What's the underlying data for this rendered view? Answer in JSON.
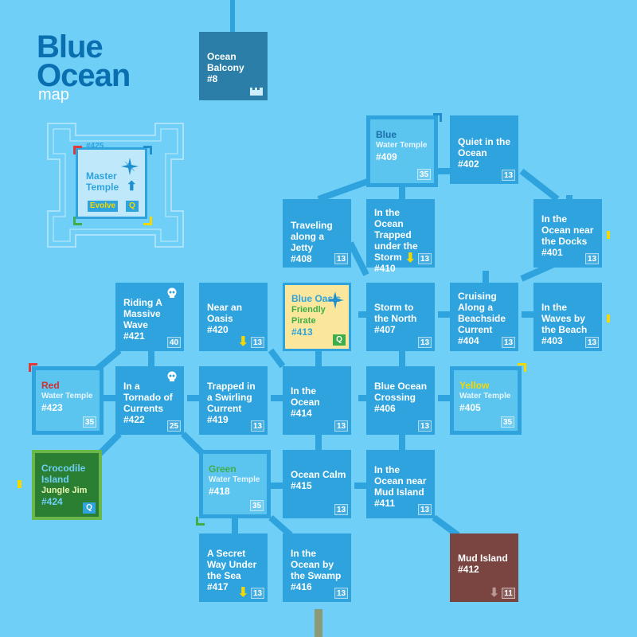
{
  "title": {
    "main_line1": "Blue",
    "main_line2": "Ocean",
    "sub": "map"
  },
  "colors": {
    "ocean": "#6fcff6",
    "room": "#2ea3dd",
    "dark_room": "#2a7ea7",
    "oasis": "#fbe79b",
    "crocodile": "#2a7f33",
    "mud": "#7a4541"
  },
  "rooms": {
    "r8": {
      "name": "Ocean Balcony",
      "id": "#8"
    },
    "r425": {
      "name": "Master Temple",
      "id": "#425",
      "evolve": "Evolve",
      "quest": "Q"
    },
    "r409": {
      "color_word": "Blue",
      "type": "Water Temple",
      "id": "#409",
      "level": "35"
    },
    "r402": {
      "name": "Quiet in the Ocean",
      "id": "#402",
      "level": "13"
    },
    "r408": {
      "name": "Traveling along a Jetty",
      "id": "#408",
      "level": "13"
    },
    "r410": {
      "name": "In the Ocean Trapped under the Storm",
      "id": "#410",
      "level": "13"
    },
    "r401": {
      "name": "In the Ocean near the Docks",
      "id": "#401",
      "level": "13"
    },
    "r421": {
      "name": "Riding A Massive Wave",
      "id": "#421",
      "level": "40"
    },
    "r420": {
      "name": "Near an Oasis",
      "id": "#420",
      "level": "13"
    },
    "r413": {
      "name": "Blue Oasis",
      "subtitle": "Friendly Pirate",
      "id": "#413",
      "quest": "Q"
    },
    "r407": {
      "name": "Storm to the North",
      "id": "#407",
      "level": "13"
    },
    "r404": {
      "name": "Cruising Along a Beachside Current",
      "id": "#404",
      "level": "13"
    },
    "r403": {
      "name": "In the Waves by the Beach",
      "id": "#403",
      "level": "13"
    },
    "r423": {
      "color_word": "Red",
      "type": "Water Temple",
      "id": "#423",
      "level": "35"
    },
    "r422": {
      "name": "In a Tornado of Currents",
      "id": "#422",
      "level": "25"
    },
    "r419": {
      "name": "Trapped in a Swirling Current",
      "id": "#419",
      "level": "13"
    },
    "r414": {
      "name": "In the Ocean",
      "id": "#414",
      "level": "13"
    },
    "r406": {
      "name": "Blue Ocean Crossing",
      "id": "#406",
      "level": "13"
    },
    "r405": {
      "color_word": "Yellow",
      "type": "Water Temple",
      "id": "#405",
      "level": "35"
    },
    "r424": {
      "name": "Crocodile Island",
      "subtitle": "Jungle Jim",
      "id": "#424",
      "quest": "Q"
    },
    "r418": {
      "color_word": "Green",
      "type": "Water Temple",
      "id": "#418",
      "level": "35"
    },
    "r415": {
      "name": "Ocean Calm",
      "id": "#415",
      "level": "13"
    },
    "r411": {
      "name": "In the Ocean near Mud Island",
      "id": "#411",
      "level": "13"
    },
    "r412": {
      "name": "Mud Island",
      "id": "#412",
      "level": "11"
    },
    "r417": {
      "name": "A Secret Way Under the Sea",
      "id": "#417",
      "level": "13"
    },
    "r416": {
      "name": "In the Ocean by the Swamp",
      "id": "#416",
      "level": "13"
    }
  }
}
